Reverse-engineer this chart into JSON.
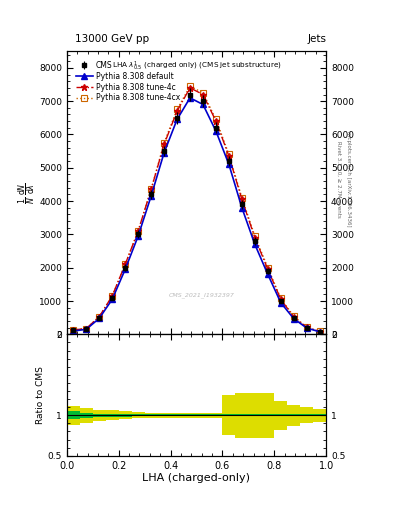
{
  "title_left": "13000 GeV pp",
  "title_right": "Jets",
  "plot_title": "LHA $\\lambda^{1}_{0.5}$ (charged only) (CMS jet substructure)",
  "xlabel": "LHA (charged-only)",
  "ylabel_ratio": "Ratio to CMS",
  "right_label1": "Rivet 3.1.10, ≥ 2.7M events",
  "right_label2": "mcplots.cern.ch [arXiv:1306.3436]",
  "watermark": "CMS_2021_I1932397",
  "xlim": [
    0,
    1
  ],
  "ylim_main": [
    0,
    8500
  ],
  "ylim_ratio": [
    0.5,
    2.0
  ],
  "yticks_main": [
    0,
    1000,
    2000,
    3000,
    4000,
    5000,
    6000,
    7000,
    8000
  ],
  "x_data": [
    0.025,
    0.075,
    0.125,
    0.175,
    0.225,
    0.275,
    0.325,
    0.375,
    0.425,
    0.475,
    0.525,
    0.575,
    0.625,
    0.675,
    0.725,
    0.775,
    0.825,
    0.875,
    0.925,
    0.975
  ],
  "cms_y": [
    120,
    160,
    500,
    1100,
    2000,
    3000,
    4200,
    5500,
    6500,
    7200,
    7000,
    6200,
    5200,
    3900,
    2800,
    1900,
    1000,
    500,
    200,
    80
  ],
  "cms_err": [
    30,
    40,
    60,
    80,
    100,
    120,
    140,
    160,
    180,
    200,
    190,
    170,
    150,
    130,
    110,
    90,
    70,
    50,
    30,
    20
  ],
  "pythia_default_y": [
    100,
    150,
    480,
    1050,
    1950,
    2950,
    4150,
    5450,
    6450,
    7100,
    6900,
    6100,
    5100,
    3800,
    2700,
    1800,
    950,
    470,
    190,
    75
  ],
  "pythia_4c_y": [
    130,
    175,
    530,
    1150,
    2100,
    3100,
    4350,
    5700,
    6700,
    7400,
    7200,
    6400,
    5350,
    4050,
    2900,
    1950,
    1050,
    520,
    210,
    85
  ],
  "pythia_4cx_y": [
    130,
    175,
    530,
    1150,
    2100,
    3100,
    4350,
    5750,
    6750,
    7450,
    7250,
    6450,
    5400,
    4100,
    2950,
    2000,
    1080,
    540,
    215,
    87
  ],
  "ratio_green_lo": [
    0.95,
    0.97,
    0.98,
    0.98,
    0.98,
    0.99,
    0.99,
    0.99,
    0.99,
    0.99,
    0.99,
    0.99,
    0.99,
    0.99,
    0.99,
    0.99,
    0.99,
    0.99,
    0.99,
    0.99
  ],
  "ratio_green_hi": [
    1.05,
    1.03,
    1.02,
    1.02,
    1.02,
    1.01,
    1.01,
    1.01,
    1.01,
    1.01,
    1.01,
    1.01,
    1.01,
    1.01,
    1.01,
    1.01,
    1.01,
    1.01,
    1.01,
    1.01
  ],
  "ratio_yellow_lo": [
    0.88,
    0.91,
    0.93,
    0.94,
    0.95,
    0.96,
    0.97,
    0.97,
    0.97,
    0.97,
    0.97,
    0.97,
    0.75,
    0.72,
    0.72,
    0.72,
    0.82,
    0.87,
    0.9,
    0.92
  ],
  "ratio_yellow_hi": [
    1.12,
    1.09,
    1.07,
    1.06,
    1.05,
    1.04,
    1.03,
    1.03,
    1.03,
    1.03,
    1.03,
    1.03,
    1.25,
    1.28,
    1.28,
    1.28,
    1.18,
    1.13,
    1.1,
    1.08
  ],
  "color_cms": "#000000",
  "color_default": "#0000CC",
  "color_4c": "#CC0000",
  "color_4cx": "#CC6600",
  "color_green": "#00BB33",
  "color_yellow": "#DDDD00"
}
